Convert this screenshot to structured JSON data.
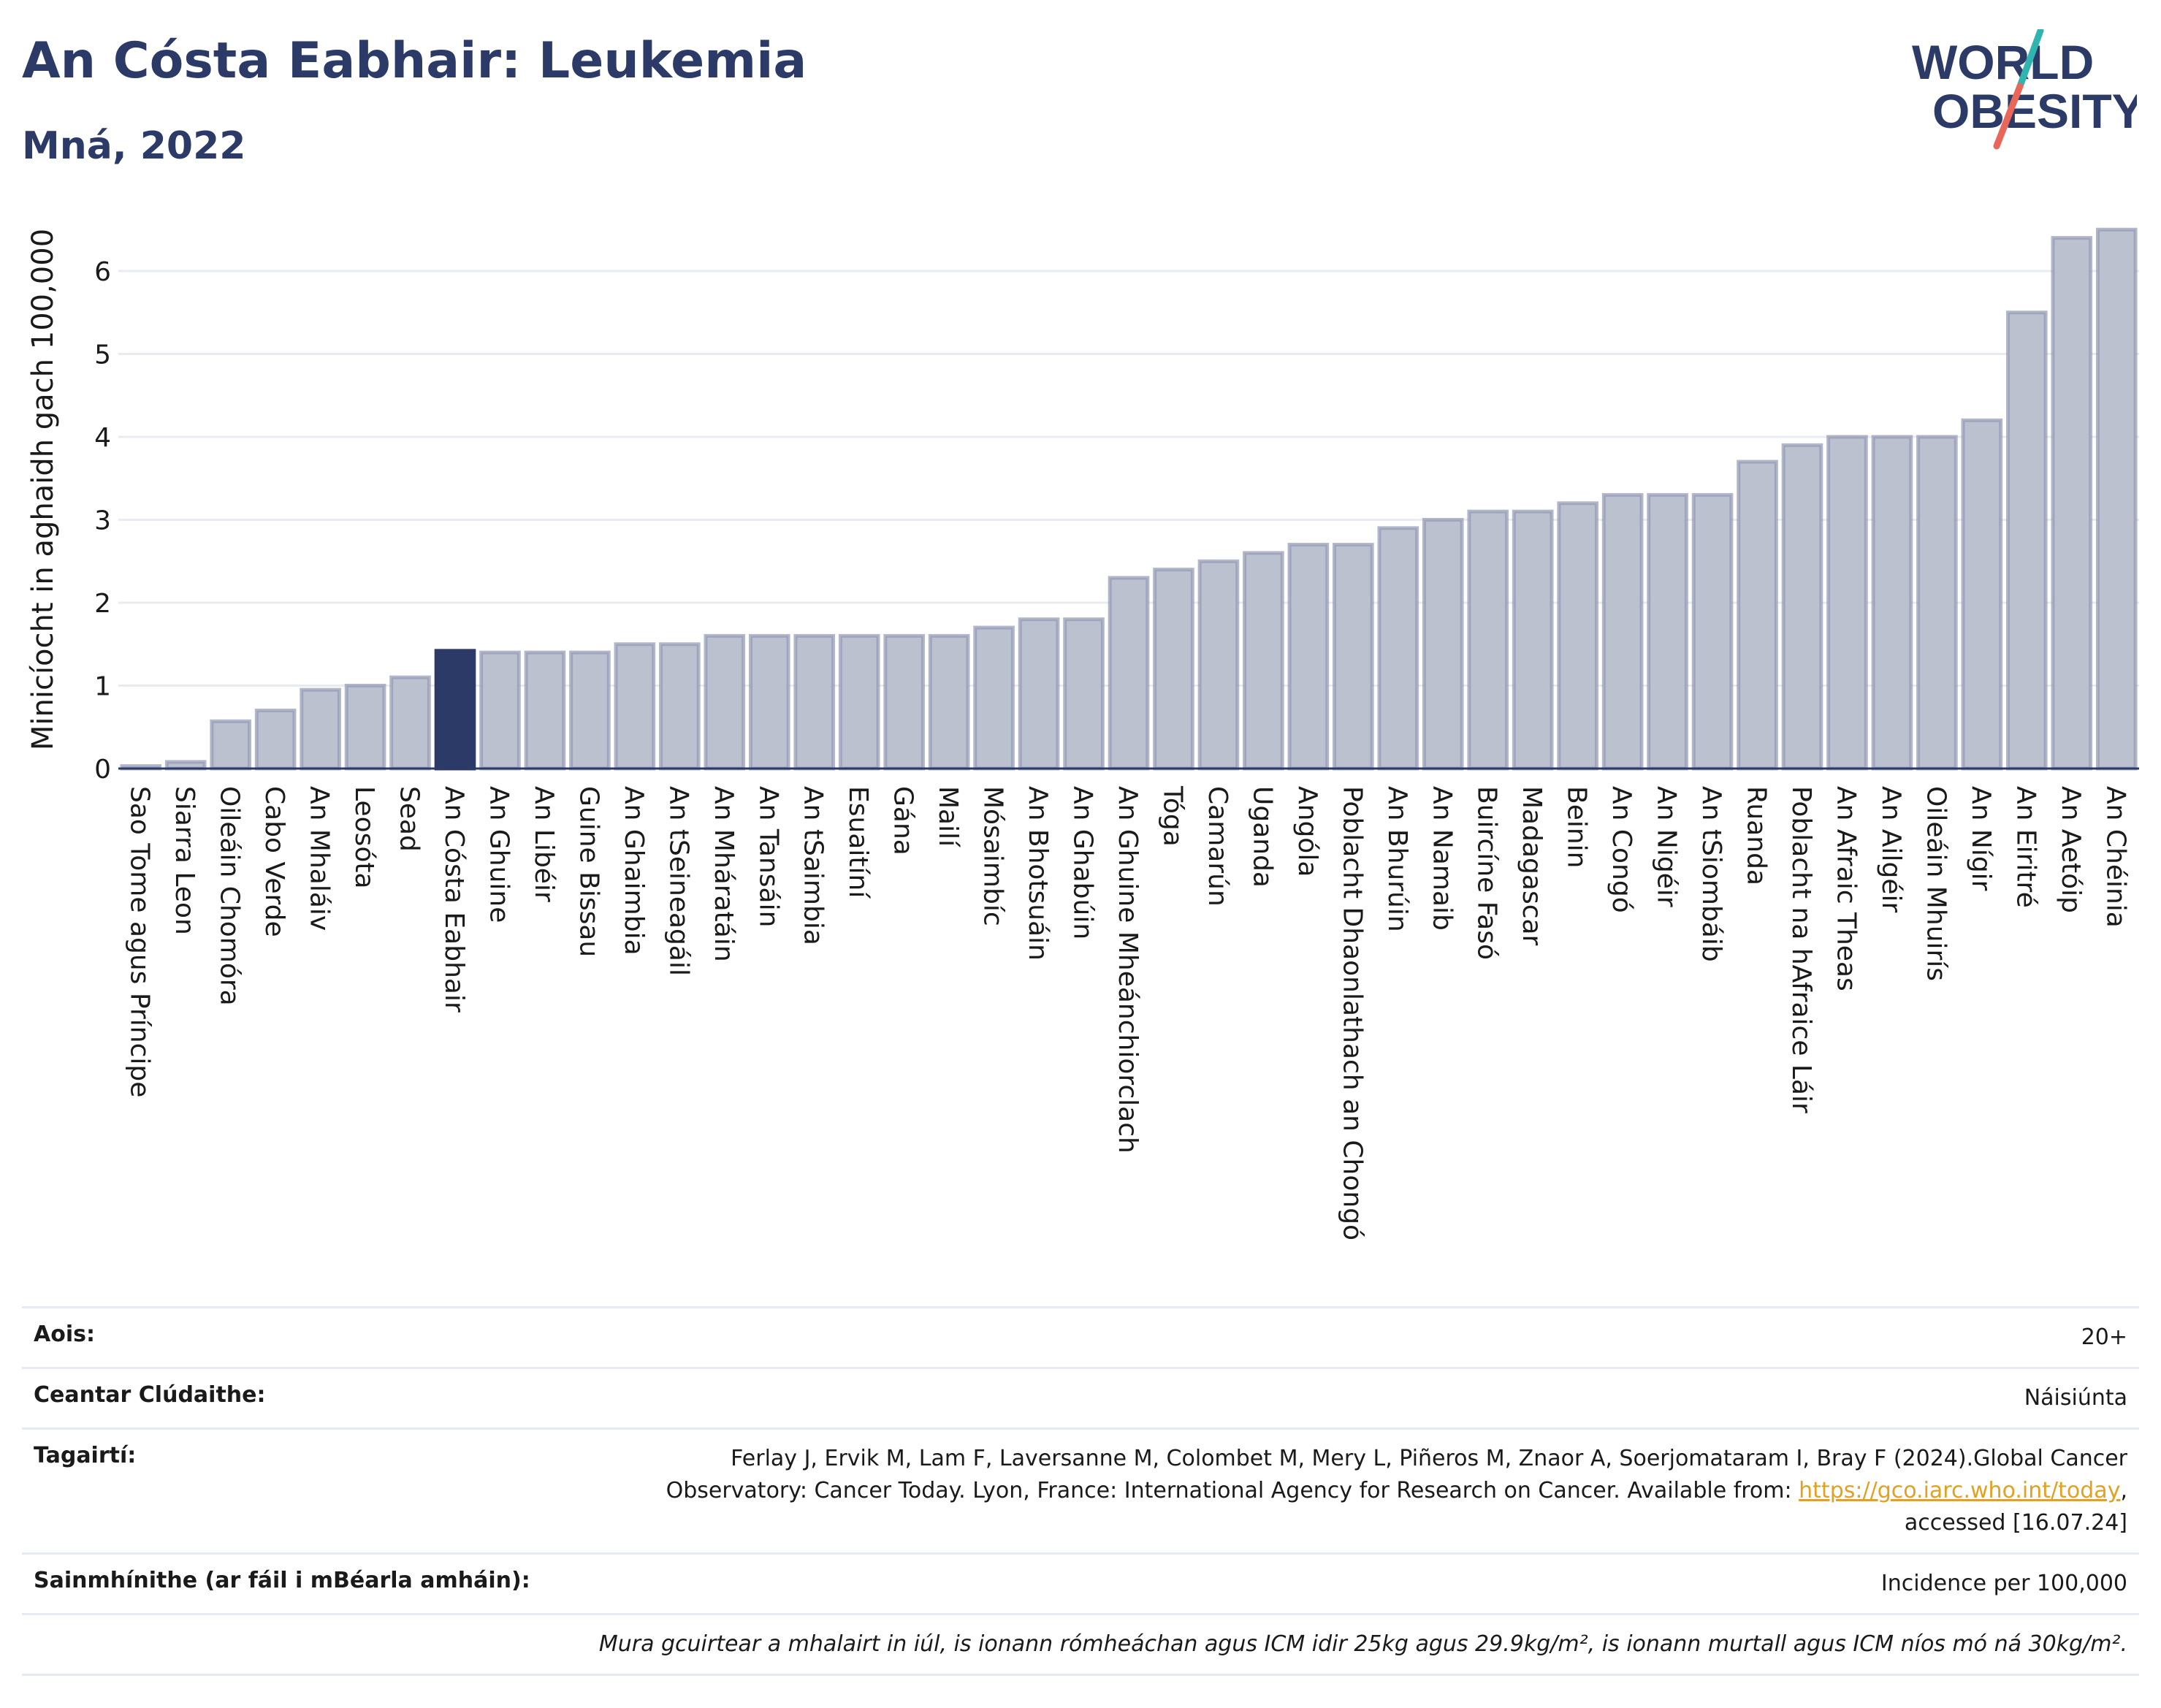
{
  "title": "An Cósta Eabhair: Leukemia",
  "subtitle": "Mná, 2022",
  "logo": {
    "line1": "WORLD",
    "line2": "OBESITY",
    "accent_colors": [
      "#2fb5b0",
      "#e8675a"
    ]
  },
  "colors": {
    "bar": "#bcc1d0",
    "bar_border": "#9399b4",
    "highlight": "#2c3a67",
    "text": "#2c3a67",
    "grid": "#e8ebf2"
  },
  "chart_data": {
    "type": "bar",
    "ylabel": "Minicíocht in aghaidh gach 100,000",
    "xlabel": "",
    "ylim": [
      0,
      6.6
    ],
    "yticks": [
      0,
      1,
      2,
      3,
      4,
      5,
      6
    ],
    "grid": true,
    "highlight": "An Cósta Eabhair",
    "categories": [
      "Sao Tome agus Príncipe",
      "Siarra Leon",
      "Oileáin Chomóra",
      "Cabo Verde",
      "An Mhaláiv",
      "Leosóta",
      "Sead",
      "An Cósta Eabhair",
      "An Ghuine",
      "An Libéir",
      "Guine Bissau",
      "An Ghaimbia",
      "An tSeineagáil",
      "An Mháratáin",
      "An Tansáin",
      "An tSaimbia",
      "Esuaitíní",
      "Gána",
      "Mailí",
      "Mósaimbíc",
      "An Bhotsuáin",
      "An Ghabúin",
      "An Ghuine Mheánchiorclach",
      "Tóga",
      "Camarún",
      "Uganda",
      "Angóla",
      "Poblacht Dhaonlathach an Chongó",
      "An Bhurúin",
      "An Namaib",
      "Buircíne Fasó",
      "Madagascar",
      "Beinin",
      "An Congó",
      "An Nigéir",
      "An tSiombáib",
      "Ruanda",
      "Poblacht na hAfraice Láir",
      "An Afraic Theas",
      "An Ailgéir",
      "Oileáin Mhuirís",
      "An Nígir",
      "An Eiritré",
      "An Aetóip",
      "An Chéinia"
    ],
    "values": [
      0.03,
      0.08,
      0.57,
      0.7,
      0.95,
      1.0,
      1.1,
      1.42,
      1.4,
      1.4,
      1.4,
      1.5,
      1.5,
      1.6,
      1.6,
      1.6,
      1.6,
      1.6,
      1.6,
      1.7,
      1.8,
      1.8,
      2.3,
      2.4,
      2.5,
      2.6,
      2.7,
      2.7,
      2.9,
      3.0,
      3.1,
      3.1,
      3.2,
      3.3,
      3.3,
      3.3,
      3.7,
      3.9,
      4.0,
      4.0,
      4.0,
      4.2,
      5.5,
      6.4,
      6.5
    ]
  },
  "info": {
    "rows": [
      {
        "label": "Aois:",
        "value": "20+"
      },
      {
        "label": "Ceantar Clúdaithe:",
        "value": "Náisiúnta"
      },
      {
        "label": "Tagairtí:",
        "ref_text_1": "Ferlay J, Ervik M, Lam F, Laversanne M, Colombet M, Mery L, Piñeros M, Znaor A, Soerjomataram I, Bray F (2024).Global Cancer",
        "ref_text_2": "Observatory: Cancer Today. Lyon, France: International Agency for Research on Cancer. Available from: ",
        "ref_link": "https://gco.iarc.who.int/today",
        "ref_text_3": ",",
        "ref_text_4": "accessed [16.07.24]"
      },
      {
        "label": "Sainmhínithe (ar fáil i mBéarla amháin):",
        "value": "Incidence per 100,000"
      }
    ],
    "note": "Mura gcuirtear a mhalairt in iúl, is ionann rómheáchan agus ICM idir 25kg agus 29.9kg/m², is ionann murtall agus ICM níos mó ná 30kg/m²."
  }
}
